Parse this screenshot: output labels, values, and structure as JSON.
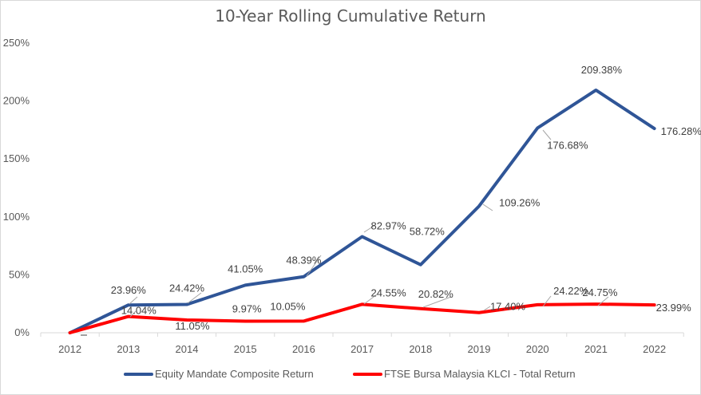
{
  "chart_data": {
    "type": "line",
    "title": "10-Year Rolling Cumulative Return",
    "categories": [
      "2012",
      "2013",
      "2014",
      "2015",
      "2016",
      "2017",
      "2018",
      "2019",
      "2020",
      "2021",
      "2022"
    ],
    "ylim": [
      0,
      250
    ],
    "yticks": [
      0,
      50,
      100,
      150,
      200,
      250
    ],
    "ytick_labels": [
      "0%",
      "50%",
      "100%",
      "150%",
      "200%",
      "250%"
    ],
    "grid": false,
    "legend_position": "bottom",
    "series": [
      {
        "name": "Equity Mandate Composite Return",
        "color": "#2F5597",
        "values": [
          0,
          23.96,
          24.42,
          41.05,
          48.39,
          82.97,
          58.72,
          109.26,
          176.68,
          209.38,
          176.28
        ],
        "labels": [
          "",
          "23.96%",
          "24.42%",
          "41.05%",
          "48.39%",
          "82.97%",
          "58.72%",
          "109.26%",
          "176.68%",
          "209.38%",
          "176.28%"
        ]
      },
      {
        "name": "FTSE Bursa Malaysia KLCI - Total Return",
        "color": "#FF0000",
        "values": [
          0,
          14.04,
          11.05,
          9.97,
          10.05,
          24.55,
          20.82,
          17.4,
          24.22,
          24.75,
          23.99
        ],
        "labels": [
          "",
          "14.04%",
          "11.05%",
          "9.97%",
          "10.05%",
          "24.55%",
          "20.82%",
          "17.40%",
          "24.22%",
          "24.75%",
          "23.99%"
        ]
      }
    ]
  }
}
